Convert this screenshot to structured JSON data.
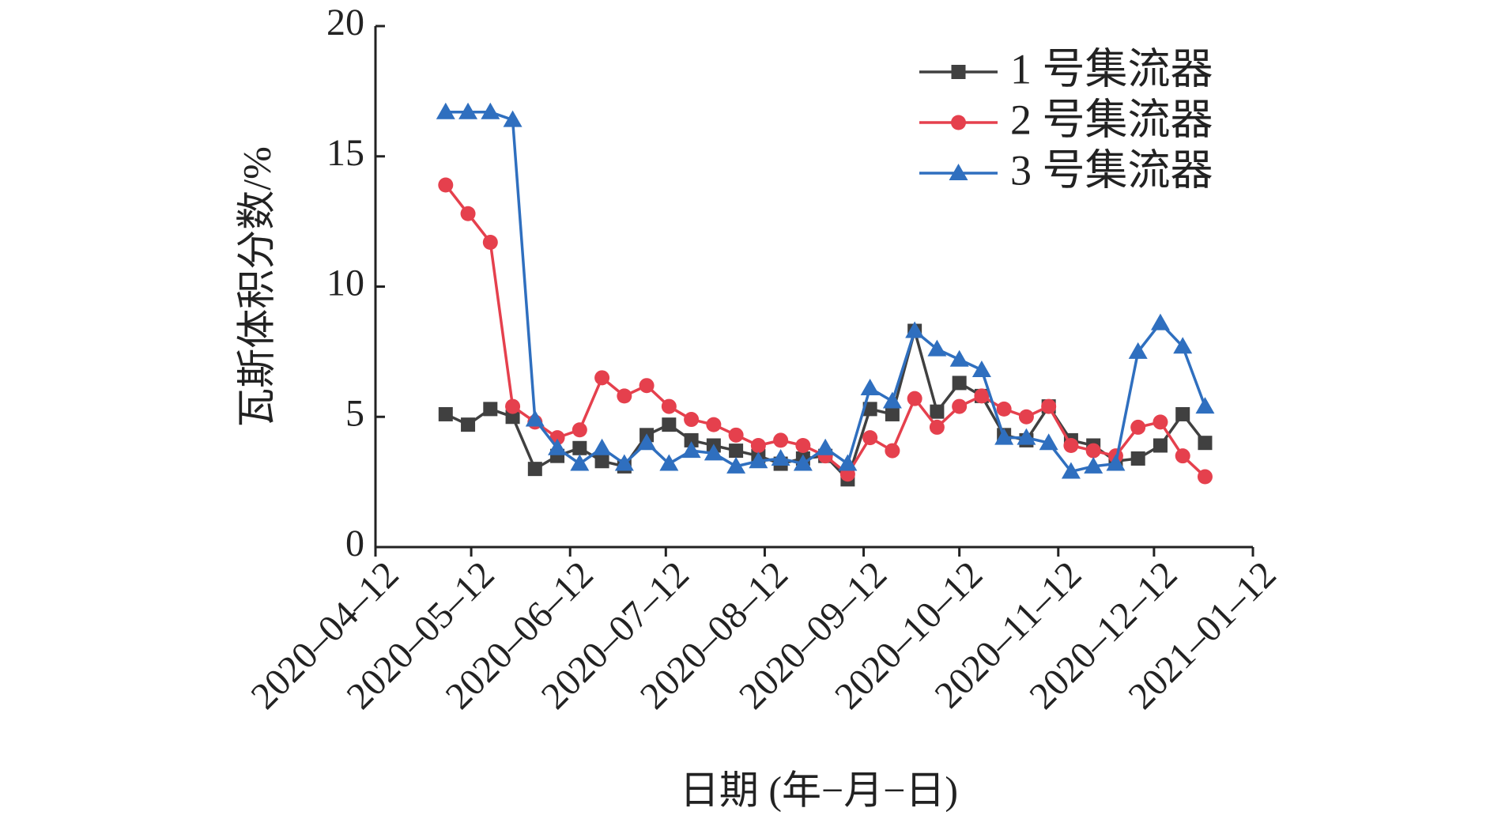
{
  "chart_data": {
    "type": "line",
    "ylabel": "瓦斯体积分数/%",
    "xlabel": "日期 (年−月−日)",
    "x": [
      "2020-05-04",
      "2020-05-11",
      "2020-05-18",
      "2020-05-25",
      "2020-06-01",
      "2020-06-08",
      "2020-06-15",
      "2020-06-22",
      "2020-06-29",
      "2020-07-06",
      "2020-07-13",
      "2020-07-20",
      "2020-07-27",
      "2020-08-03",
      "2020-08-10",
      "2020-08-17",
      "2020-08-24",
      "2020-08-31",
      "2020-09-07",
      "2020-09-14",
      "2020-09-21",
      "2020-09-28",
      "2020-10-05",
      "2020-10-12",
      "2020-10-19",
      "2020-10-26",
      "2020-11-02",
      "2020-11-09",
      "2020-11-16",
      "2020-11-23",
      "2020-11-30",
      "2020-12-07",
      "2020-12-14",
      "2020-12-21",
      "2020-12-28"
    ],
    "series": [
      {
        "name": "1 号集流器",
        "color": "#404040",
        "marker": "square",
        "values": [
          5.1,
          4.7,
          5.3,
          5.0,
          3.0,
          3.5,
          3.8,
          3.3,
          3.1,
          4.3,
          4.7,
          4.1,
          3.9,
          3.7,
          3.5,
          3.2,
          3.4,
          3.5,
          2.6,
          5.3,
          5.1,
          8.3,
          5.2,
          6.3,
          5.8,
          4.3,
          4.1,
          5.4,
          4.1,
          3.9,
          3.3,
          3.4,
          3.9,
          5.1,
          4.0
        ]
      },
      {
        "name": "2 号集流器",
        "color": "#e5404d",
        "marker": "circle",
        "values": [
          13.9,
          12.8,
          11.7,
          5.4,
          4.8,
          4.2,
          4.5,
          6.5,
          5.8,
          6.2,
          5.4,
          4.9,
          4.7,
          4.3,
          3.9,
          4.1,
          3.9,
          3.5,
          2.8,
          4.2,
          3.7,
          5.7,
          4.6,
          5.4,
          5.8,
          5.3,
          5.0,
          5.4,
          3.9,
          3.7,
          3.5,
          4.6,
          4.8,
          3.5,
          2.7
        ]
      },
      {
        "name": "3 号集流器",
        "color": "#2f6fbf",
        "marker": "triangle",
        "values": [
          16.7,
          16.7,
          16.7,
          16.4,
          4.9,
          3.8,
          3.2,
          3.8,
          3.2,
          4.0,
          3.2,
          3.7,
          3.6,
          3.1,
          3.3,
          3.4,
          3.2,
          3.8,
          3.2,
          6.1,
          5.6,
          8.3,
          7.6,
          7.2,
          6.8,
          4.2,
          4.2,
          4.0,
          2.9,
          3.1,
          3.2,
          7.5,
          8.6,
          7.7,
          5.4
        ]
      }
    ],
    "xlim": [
      "2020-04-12",
      "2021-01-12"
    ],
    "xticks": [
      {
        "value": "2020-04-12",
        "label": "2020–04–12"
      },
      {
        "value": "2020-05-12",
        "label": "2020–05–12"
      },
      {
        "value": "2020-06-12",
        "label": "2020–06–12"
      },
      {
        "value": "2020-07-12",
        "label": "2020–07–12"
      },
      {
        "value": "2020-08-12",
        "label": "2020–08–12"
      },
      {
        "value": "2020-09-12",
        "label": "2020–09–12"
      },
      {
        "value": "2020-10-12",
        "label": "2020–10–12"
      },
      {
        "value": "2020-11-12",
        "label": "2020–11–12"
      },
      {
        "value": "2020-12-12",
        "label": "2020–12–12"
      },
      {
        "value": "2021-01-12",
        "label": "2021–01–12"
      }
    ],
    "ylim": [
      0,
      20
    ],
    "yticks": [
      0,
      5,
      10,
      15,
      20
    ],
    "legend": "upper right"
  }
}
